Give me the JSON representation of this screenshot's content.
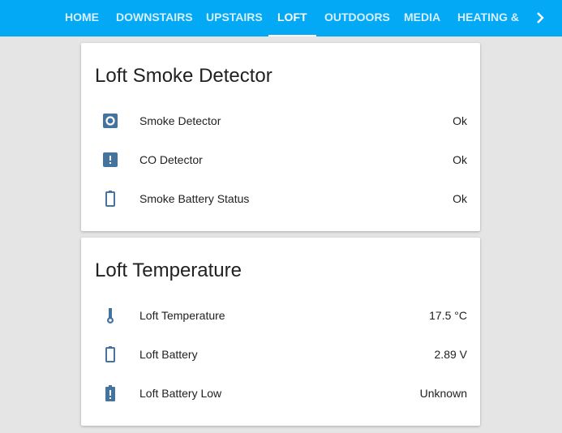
{
  "tabs": [
    {
      "label": "Home"
    },
    {
      "label": "Downstairs"
    },
    {
      "label": "Upstairs"
    },
    {
      "label": "Loft",
      "active": true
    },
    {
      "label": "Outdoors"
    },
    {
      "label": "Media"
    },
    {
      "label": "Heating &"
    }
  ],
  "colors": {
    "header": "#03a9f4",
    "icon": "#44739e"
  },
  "cards": [
    {
      "title": "Loft Smoke Detector",
      "rows": [
        {
          "icon": "smoke-detector-icon",
          "label": "Smoke Detector",
          "value": "Ok"
        },
        {
          "icon": "alert-box-icon",
          "label": "CO Detector",
          "value": "Ok"
        },
        {
          "icon": "battery-icon",
          "label": "Smoke Battery Status",
          "value": "Ok"
        }
      ]
    },
    {
      "title": "Loft Temperature",
      "rows": [
        {
          "icon": "thermometer-icon",
          "label": "Loft Temperature",
          "value": "17.5 °C"
        },
        {
          "icon": "battery-icon",
          "label": "Loft Battery",
          "value": "2.89 V"
        },
        {
          "icon": "battery-alert-icon",
          "label": "Loft Battery Low",
          "value": "Unknown"
        }
      ]
    }
  ]
}
